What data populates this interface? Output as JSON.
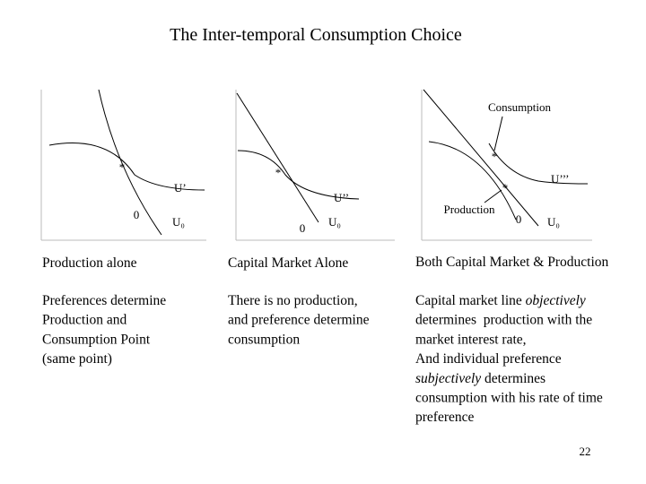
{
  "title": "The Inter-temporal Consumption Choice",
  "panels": [
    {
      "heading": "Production alone",
      "labels": {
        "star": "*",
        "utility": "U’",
        "zero": "0",
        "u0": "U₀"
      },
      "description": [
        [
          {
            "text": "Preferences determine"
          }
        ],
        [
          {
            "text": "Production and"
          }
        ],
        [
          {
            "text": "Consumption Point"
          }
        ],
        [
          {
            "text": "(same point)"
          }
        ]
      ]
    },
    {
      "heading": "Capital Market Alone",
      "labels": {
        "star": "*",
        "utility": "U’’",
        "zero": "0",
        "u0": "U₀"
      },
      "description": [
        [
          {
            "text": "There is no production,"
          }
        ],
        [
          {
            "text": "and preference determine"
          }
        ],
        [
          {
            "text": "consumption"
          }
        ]
      ]
    },
    {
      "heading": "Both Capital Market & Production",
      "labels": {
        "consumption": "Consumption",
        "star": "*",
        "star2": "*",
        "utility": "U’’’",
        "production": "Production",
        "zero": "0",
        "u0": "U₀"
      },
      "description": [
        [
          {
            "text": "Capital market line "
          },
          {
            "text": "objectively",
            "italic": true
          }
        ],
        [
          {
            "text": "determines  production with the"
          }
        ],
        [
          {
            "text": "market interest rate,"
          }
        ],
        [
          {
            "text": "And individual preference"
          }
        ],
        [
          {
            "text": "subjectively",
            "italic": true
          },
          {
            "text": " determines"
          }
        ],
        [
          {
            "text": "consumption with his rate of time"
          }
        ],
        [
          {
            "text": "preference"
          }
        ]
      ]
    }
  ],
  "page_number": "22"
}
